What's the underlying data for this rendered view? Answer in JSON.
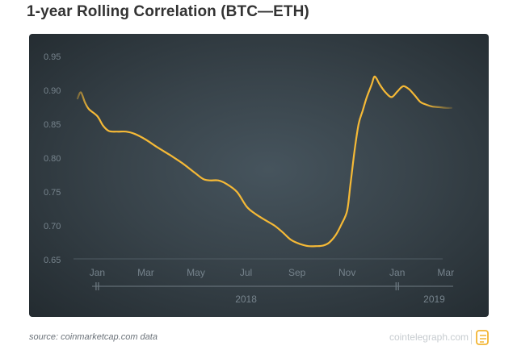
{
  "title": "1-year Rolling Correlation (BTC—ETH)",
  "footer": {
    "source": "source: coinmarketcap.com data",
    "brand": "cointelegraph.com"
  },
  "colors": {
    "line": "#f5b936",
    "axis_text": "#76838c",
    "grid": "#4d5961",
    "timeline": "#6f7b83",
    "logo": "#f3b532"
  },
  "chart_data": {
    "type": "line",
    "title": "1-year Rolling Correlation (BTC—ETH)",
    "xlabel": "",
    "ylabel": "",
    "ylim": [
      0.65,
      0.95
    ],
    "xlim": [
      "2017-12-08",
      "2019-03-15"
    ],
    "yticks": [
      "0.95",
      "0.90",
      "0.85",
      "0.80",
      "0.75",
      "0.70",
      "0.65"
    ],
    "xticks": [
      {
        "label": "Jan",
        "date": "2018-01-01"
      },
      {
        "label": "Mar",
        "date": "2018-03-01"
      },
      {
        "label": "May",
        "date": "2018-05-01"
      },
      {
        "label": "Jul",
        "date": "2018-07-01"
      },
      {
        "label": "Sep",
        "date": "2018-09-01"
      },
      {
        "label": "Nov",
        "date": "2018-11-01"
      },
      {
        "label": "Jan",
        "date": "2019-01-01"
      },
      {
        "label": "Mar",
        "date": "2019-03-01"
      }
    ],
    "year_labels": [
      {
        "label": "2018",
        "date": "2018-07-01"
      },
      {
        "label": "2019",
        "date": "2019-02-15"
      }
    ],
    "grid": false,
    "series": [
      {
        "x": [
          "2017-12-08",
          "2017-12-12",
          "2017-12-17",
          "2017-12-22",
          "2018-01-01",
          "2018-01-08",
          "2018-01-15",
          "2018-01-25",
          "2018-02-05",
          "2018-02-15",
          "2018-02-28",
          "2018-03-15",
          "2018-03-31",
          "2018-04-15",
          "2018-04-30",
          "2018-05-10",
          "2018-05-18",
          "2018-05-28",
          "2018-06-07",
          "2018-06-20",
          "2018-07-02",
          "2018-07-13",
          "2018-07-25",
          "2018-08-05",
          "2018-08-15",
          "2018-08-25",
          "2018-09-05",
          "2018-09-15",
          "2018-09-25",
          "2018-10-03",
          "2018-10-10",
          "2018-10-18",
          "2018-10-25",
          "2018-11-01",
          "2018-11-05",
          "2018-11-10",
          "2018-11-15",
          "2018-11-20",
          "2018-11-25",
          "2018-12-01",
          "2018-12-04",
          "2018-12-07",
          "2018-12-10",
          "2018-12-17",
          "2018-12-25",
          "2019-01-01",
          "2019-01-08",
          "2019-01-15",
          "2019-01-22",
          "2019-01-29",
          "2019-02-05",
          "2019-02-13",
          "2019-02-22",
          "2019-03-02",
          "2019-03-08"
        ],
        "values": [
          0.888,
          0.897,
          0.882,
          0.872,
          0.862,
          0.848,
          0.84,
          0.839,
          0.839,
          0.836,
          0.828,
          0.816,
          0.804,
          0.792,
          0.778,
          0.769,
          0.767,
          0.767,
          0.762,
          0.75,
          0.728,
          0.717,
          0.708,
          0.7,
          0.69,
          0.679,
          0.673,
          0.67,
          0.67,
          0.671,
          0.675,
          0.686,
          0.702,
          0.722,
          0.76,
          0.81,
          0.85,
          0.87,
          0.89,
          0.909,
          0.92,
          0.917,
          0.91,
          0.898,
          0.89,
          0.898,
          0.906,
          0.902,
          0.893,
          0.883,
          0.879,
          0.876,
          0.875,
          0.874,
          0.874
        ]
      }
    ]
  }
}
